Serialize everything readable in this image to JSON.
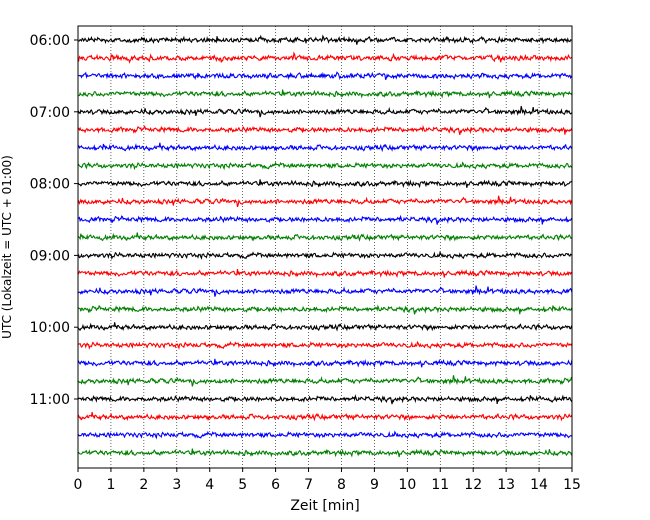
{
  "chart_data": {
    "type": "line",
    "subtype": "helicorder",
    "xlabel": "Zeit  [min]",
    "ylabel": "UTC (Lokalzeit = UTC + 01:00)",
    "xlim": [
      0,
      15
    ],
    "x_ticks": [
      "0",
      "1",
      "2",
      "3",
      "4",
      "5",
      "6",
      "7",
      "8",
      "9",
      "10",
      "11",
      "12",
      "13",
      "14",
      "15"
    ],
    "y_tick_labels": [
      "06:00",
      "07:00",
      "08:00",
      "09:00",
      "10:00",
      "11:00"
    ],
    "trace_interval_minutes": 15,
    "trace_count": 24,
    "trace_colors": [
      "#000000",
      "#ff0000",
      "#0000ff",
      "#008000"
    ],
    "grid": "vertical dotted at each minute"
  }
}
